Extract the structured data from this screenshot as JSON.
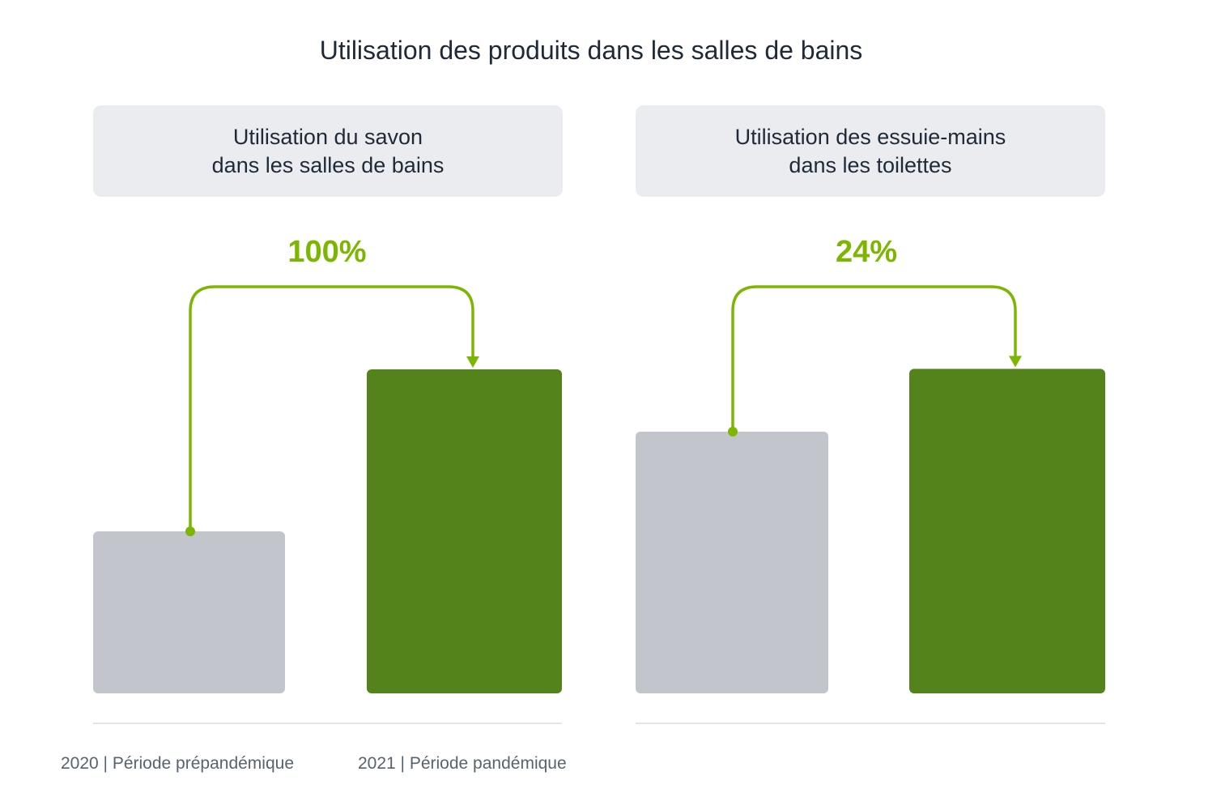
{
  "title": "Utilisation des produits dans les salles de bains",
  "colors": {
    "before": "#c2c5cb",
    "after": "#53831a",
    "accent": "#7db600",
    "header_bg": "#eaecf0",
    "baseline": "#e3e5e8"
  },
  "legend": {
    "before": "2020 | Période prépandémique",
    "after": "2021 | Période pandémique"
  },
  "chart_data": [
    {
      "type": "bar",
      "title_lines": [
        "Utilisation du savon",
        "dans les salles de bains"
      ],
      "categories": [
        "2020 | Période prépandémique",
        "2021 | Période pandémique"
      ],
      "values": [
        100,
        200
      ],
      "change_label": "100%",
      "ylim": [
        0,
        210
      ],
      "grid": false
    },
    {
      "type": "bar",
      "title_lines": [
        "Utilisation des essuie-mains",
        "dans les toilettes"
      ],
      "categories": [
        "2020 | Période prépandémique",
        "2021 | Période pandémique"
      ],
      "values": [
        100,
        124
      ],
      "change_label": "24%",
      "ylim": [
        0,
        130
      ],
      "grid": false
    }
  ]
}
